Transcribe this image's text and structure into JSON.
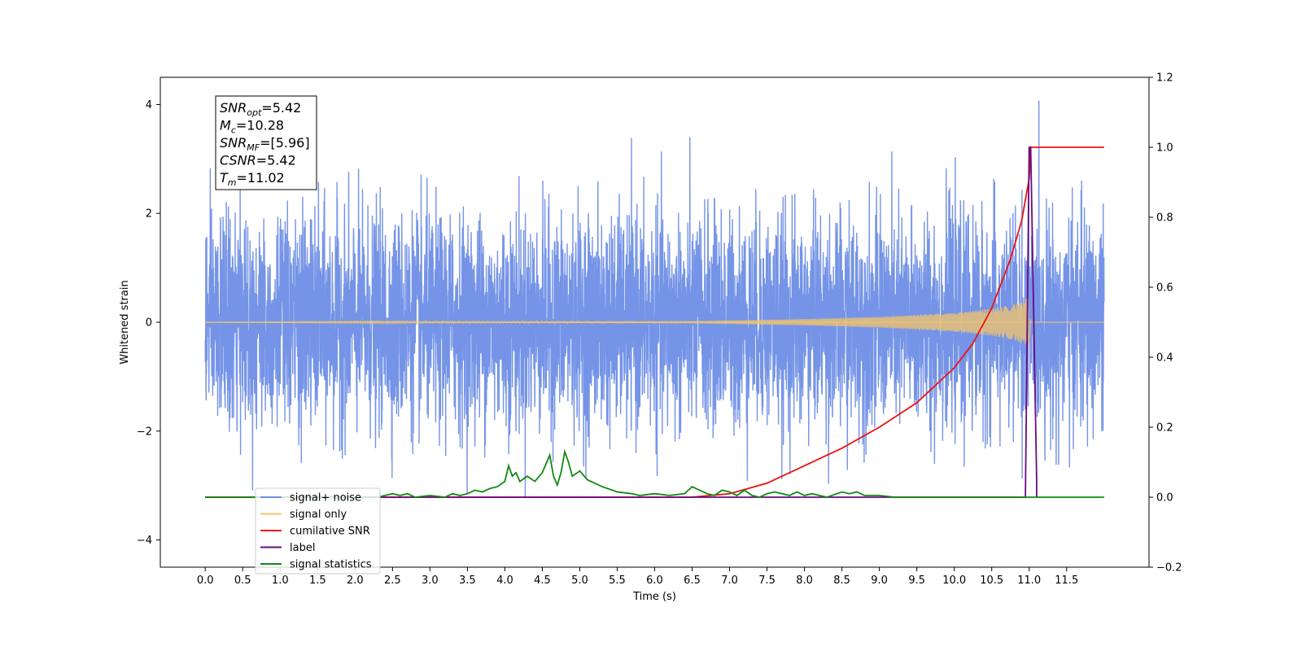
{
  "chart_data": {
    "type": "line",
    "xlabel": "Time (s)",
    "ylabel_left": "Whitened strain",
    "ylabel_right": "",
    "xlim": [
      -0.6,
      12.6
    ],
    "ylim_left": [
      -4.5,
      4.5
    ],
    "ylim_right": [
      -0.2,
      1.2
    ],
    "x_ticks": [
      0.0,
      0.5,
      1.0,
      1.5,
      2.0,
      2.5,
      3.0,
      3.5,
      4.0,
      4.5,
      5.0,
      5.5,
      6.0,
      6.5,
      7.0,
      7.5,
      8.0,
      8.5,
      9.0,
      9.5,
      10.0,
      10.5,
      11.0,
      11.5
    ],
    "x_tick_labels": [
      "0.0",
      "0.5",
      "1.0",
      "1.5",
      "2.0",
      "2.5",
      "3.0",
      "3.5",
      "4.0",
      "4.5",
      "5.0",
      "5.5",
      "6.0",
      "6.5",
      "7.0",
      "7.5",
      "8.0",
      "8.5",
      "9.0",
      "9.5",
      "10.0",
      "10.5",
      "11.0",
      "11.5"
    ],
    "y_left_ticks": [
      -4,
      -2,
      0,
      2,
      4
    ],
    "y_left_tick_labels": [
      "−4",
      "−2",
      "0",
      "2",
      "4"
    ],
    "y_right_ticks": [
      -0.2,
      0.0,
      0.2,
      0.4,
      0.6,
      0.8,
      1.0,
      1.2
    ],
    "y_right_tick_labels": [
      "−0.2",
      "0.0",
      "0.2",
      "0.4",
      "0.6",
      "0.8",
      "1.0",
      "1.2"
    ],
    "grid": false,
    "legend_position": "lower-left",
    "series": [
      {
        "name": "signal+ noise",
        "axis": "left",
        "color": "#6e8ee6",
        "kind": "noise",
        "x_range": [
          0.0,
          12.0
        ],
        "typical_amplitude": 2.1,
        "peak_min": -4.1,
        "peak_max": 4.1
      },
      {
        "name": "signal only",
        "axis": "left",
        "color": "#f5c56a",
        "kind": "chirp",
        "x_range": [
          0.0,
          11.02
        ],
        "envelope": {
          "x": [
            0,
            6.5,
            8.0,
            9.0,
            10.0,
            10.5,
            10.8,
            11.0,
            11.02
          ],
          "y": [
            0.0,
            0.02,
            0.06,
            0.1,
            0.17,
            0.25,
            0.33,
            0.45,
            0.0
          ]
        }
      },
      {
        "name": "cumilative SNR",
        "axis": "right",
        "color": "#ee1111",
        "x": [
          0.0,
          6.5,
          7.0,
          7.5,
          8.0,
          8.5,
          9.0,
          9.5,
          10.0,
          10.25,
          10.5,
          10.75,
          10.9,
          11.0,
          11.02,
          11.1,
          11.5,
          12.0
        ],
        "y": [
          0.0,
          0.0,
          0.01,
          0.04,
          0.09,
          0.14,
          0.2,
          0.27,
          0.37,
          0.44,
          0.54,
          0.68,
          0.79,
          0.91,
          1.0,
          1.0,
          1.0,
          1.0
        ]
      },
      {
        "name": "label",
        "axis": "right",
        "color": "#6a0a80",
        "x": [
          0.0,
          10.95,
          10.95,
          11.0,
          11.02,
          11.1,
          11.1
        ],
        "y": [
          0.0,
          0.0,
          0.0,
          1.0,
          1.0,
          0.05,
          0.0
        ]
      },
      {
        "name": "signal statistics",
        "axis": "right",
        "color": "#118811",
        "x": [
          0.0,
          2.3,
          2.5,
          2.6,
          2.7,
          2.8,
          3.0,
          3.2,
          3.3,
          3.4,
          3.5,
          3.6,
          3.7,
          3.8,
          3.9,
          4.0,
          4.05,
          4.1,
          4.15,
          4.2,
          4.3,
          4.4,
          4.5,
          4.6,
          4.65,
          4.7,
          4.75,
          4.8,
          4.85,
          4.9,
          5.0,
          5.1,
          5.2,
          5.3,
          5.5,
          5.7,
          5.8,
          6.0,
          6.2,
          6.4,
          6.5,
          6.6,
          6.7,
          6.8,
          6.9,
          7.0,
          7.1,
          7.2,
          7.3,
          7.4,
          7.5,
          7.6,
          7.8,
          7.9,
          8.0,
          8.1,
          8.3,
          8.5,
          8.6,
          8.7,
          8.8,
          9.0,
          9.2,
          9.5,
          10.0,
          11.0,
          12.0
        ],
        "y": [
          0.0,
          0.0,
          0.01,
          0.005,
          0.01,
          0.0,
          0.005,
          0.0,
          0.01,
          0.005,
          0.01,
          0.02,
          0.015,
          0.025,
          0.03,
          0.045,
          0.09,
          0.06,
          0.07,
          0.045,
          0.06,
          0.045,
          0.07,
          0.12,
          0.06,
          0.035,
          0.07,
          0.13,
          0.1,
          0.06,
          0.075,
          0.05,
          0.04,
          0.03,
          0.015,
          0.01,
          0.005,
          0.01,
          0.005,
          0.01,
          0.03,
          0.02,
          0.01,
          0.005,
          0.02,
          0.015,
          0.005,
          0.02,
          0.005,
          0.0,
          0.01,
          0.015,
          0.005,
          0.015,
          0.005,
          0.01,
          0.0,
          0.015,
          0.01,
          0.015,
          0.005,
          0.005,
          0.0,
          0.0,
          0.0,
          0.0,
          0.0
        ]
      }
    ],
    "legend_entries": [
      {
        "name": "signal+ noise",
        "color": "#6e8ee6"
      },
      {
        "name": "signal only",
        "color": "#f5c56a"
      },
      {
        "name": "cumilative SNR",
        "color": "#ee1111"
      },
      {
        "name": "label",
        "color": "#6a0a80"
      },
      {
        "name": "signal statistics",
        "color": "#118811"
      }
    ],
    "annotation": {
      "lines": [
        {
          "base": "SNR",
          "sub": "opt",
          "value": "=5.42"
        },
        {
          "base": "M",
          "sub": "c",
          "value": "=10.28"
        },
        {
          "base": "SNR",
          "sub": "MF",
          "value": "=[5.96]"
        },
        {
          "base": "CSNR",
          "sub": "",
          "value": "=5.42"
        },
        {
          "base": "T",
          "sub": "m",
          "value": "=11.02"
        }
      ]
    }
  }
}
